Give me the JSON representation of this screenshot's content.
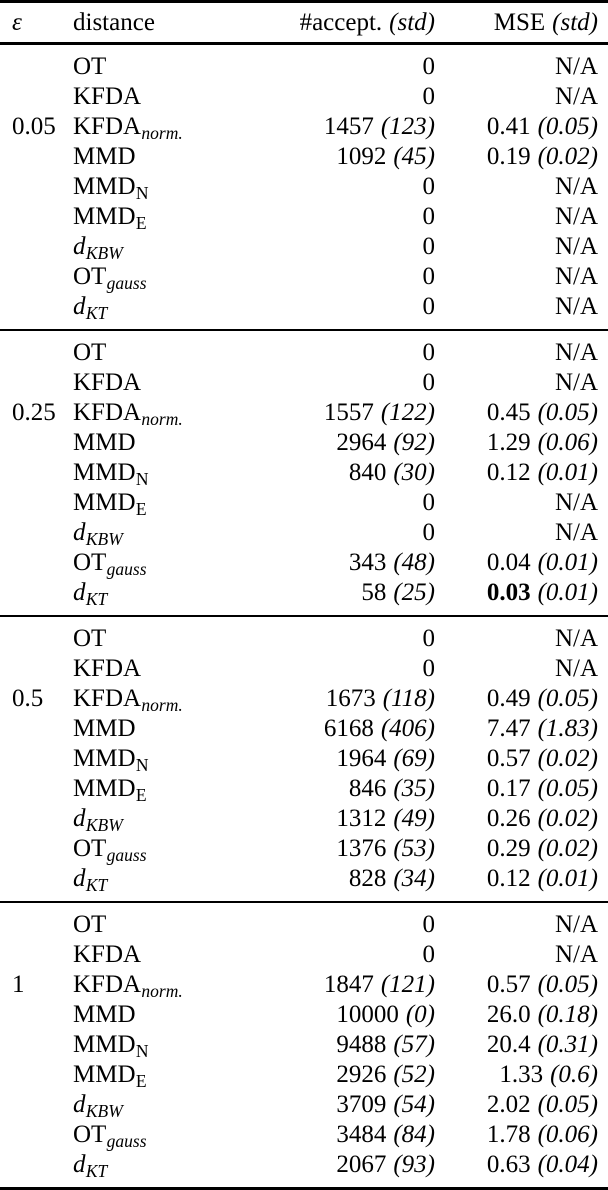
{
  "header": {
    "epsilon": "ε",
    "distance": "distance",
    "accept_main": "#accept.",
    "accept_std": "(std)",
    "mse_main": "MSE",
    "mse_std": "(std)"
  },
  "colors": {
    "text": "#000000",
    "background": "#ffffff",
    "rule": "#000000"
  },
  "groups": [
    {
      "eps": "0.05",
      "rows": [
        {
          "dist": {
            "main": "OT"
          },
          "accept": "0",
          "mse": "N/A"
        },
        {
          "dist": {
            "main": "KFDA"
          },
          "accept": "0",
          "mse": "N/A"
        },
        {
          "dist": {
            "main": "KFDA",
            "sub": "norm.",
            "sub_italic": true
          },
          "accept": "1457",
          "accept_std": "(123)",
          "mse": "0.41",
          "mse_std": "(0.05)"
        },
        {
          "dist": {
            "main": "MMD"
          },
          "accept": "1092",
          "accept_std": "(45)",
          "mse": "0.19",
          "mse_std": "(0.02)"
        },
        {
          "dist": {
            "main": "MMD",
            "sub": "N"
          },
          "accept": "0",
          "mse": "N/A"
        },
        {
          "dist": {
            "main": "MMD",
            "sub": "E"
          },
          "accept": "0",
          "mse": "N/A"
        },
        {
          "dist": {
            "main": "d",
            "main_italic": true,
            "sub": "KBW",
            "sub_italic": true
          },
          "accept": "0",
          "mse": "N/A"
        },
        {
          "dist": {
            "main": "OT",
            "sub": "gauss",
            "sub_italic": true
          },
          "accept": "0",
          "mse": "N/A"
        },
        {
          "dist": {
            "main": "d",
            "main_italic": true,
            "sub": "KT",
            "sub_italic": true
          },
          "accept": "0",
          "mse": "N/A"
        }
      ]
    },
    {
      "eps": "0.25",
      "rows": [
        {
          "dist": {
            "main": "OT"
          },
          "accept": "0",
          "mse": "N/A"
        },
        {
          "dist": {
            "main": "KFDA"
          },
          "accept": "0",
          "mse": "N/A"
        },
        {
          "dist": {
            "main": "KFDA",
            "sub": "norm.",
            "sub_italic": true
          },
          "accept": "1557",
          "accept_std": "(122)",
          "mse": "0.45",
          "mse_std": "(0.05)"
        },
        {
          "dist": {
            "main": "MMD"
          },
          "accept": "2964",
          "accept_std": "(92)",
          "mse": "1.29",
          "mse_std": "(0.06)"
        },
        {
          "dist": {
            "main": "MMD",
            "sub": "N"
          },
          "accept": "840",
          "accept_std": "(30)",
          "mse": "0.12",
          "mse_std": "(0.01)"
        },
        {
          "dist": {
            "main": "MMD",
            "sub": "E"
          },
          "accept": "0",
          "mse": "N/A"
        },
        {
          "dist": {
            "main": "d",
            "main_italic": true,
            "sub": "KBW",
            "sub_italic": true
          },
          "accept": "0",
          "mse": "N/A"
        },
        {
          "dist": {
            "main": "OT",
            "sub": "gauss",
            "sub_italic": true
          },
          "accept": "343",
          "accept_std": "(48)",
          "mse": "0.04",
          "mse_std": "(0.01)"
        },
        {
          "dist": {
            "main": "d",
            "main_italic": true,
            "sub": "KT",
            "sub_italic": true
          },
          "accept": "58",
          "accept_std": "(25)",
          "mse": "0.03",
          "mse_std": "(0.01)",
          "mse_bold": true
        }
      ]
    },
    {
      "eps": "0.5",
      "rows": [
        {
          "dist": {
            "main": "OT"
          },
          "accept": "0",
          "mse": "N/A"
        },
        {
          "dist": {
            "main": "KFDA"
          },
          "accept": "0",
          "mse": "N/A"
        },
        {
          "dist": {
            "main": "KFDA",
            "sub": "norm.",
            "sub_italic": true
          },
          "accept": "1673",
          "accept_std": "(118)",
          "mse": "0.49",
          "mse_std": "(0.05)"
        },
        {
          "dist": {
            "main": "MMD"
          },
          "accept": "6168",
          "accept_std": "(406)",
          "mse": "7.47",
          "mse_std": "(1.83)"
        },
        {
          "dist": {
            "main": "MMD",
            "sub": "N"
          },
          "accept": "1964",
          "accept_std": "(69)",
          "mse": "0.57",
          "mse_std": "(0.02)"
        },
        {
          "dist": {
            "main": "MMD",
            "sub": "E"
          },
          "accept": "846",
          "accept_std": "(35)",
          "mse": "0.17",
          "mse_std": "(0.05)"
        },
        {
          "dist": {
            "main": "d",
            "main_italic": true,
            "sub": "KBW",
            "sub_italic": true
          },
          "accept": "1312",
          "accept_std": "(49)",
          "mse": "0.26",
          "mse_std": "(0.02)"
        },
        {
          "dist": {
            "main": "OT",
            "sub": "gauss",
            "sub_italic": true
          },
          "accept": "1376",
          "accept_std": "(53)",
          "mse": "0.29",
          "mse_std": "(0.02)"
        },
        {
          "dist": {
            "main": "d",
            "main_italic": true,
            "sub": "KT",
            "sub_italic": true
          },
          "accept": "828",
          "accept_std": "(34)",
          "mse": "0.12",
          "mse_std": "(0.01)"
        }
      ]
    },
    {
      "eps": "1",
      "rows": [
        {
          "dist": {
            "main": "OT"
          },
          "accept": "0",
          "mse": "N/A"
        },
        {
          "dist": {
            "main": "KFDA"
          },
          "accept": "0",
          "mse": "N/A"
        },
        {
          "dist": {
            "main": "KFDA",
            "sub": "norm.",
            "sub_italic": true
          },
          "accept": "1847",
          "accept_std": "(121)",
          "mse": "0.57",
          "mse_std": "(0.05)"
        },
        {
          "dist": {
            "main": "MMD"
          },
          "accept": "10000",
          "accept_std": "(0)",
          "mse": "26.0",
          "mse_std": "(0.18)"
        },
        {
          "dist": {
            "main": "MMD",
            "sub": "N"
          },
          "accept": "9488",
          "accept_std": "(57)",
          "mse": "20.4",
          "mse_std": "(0.31)"
        },
        {
          "dist": {
            "main": "MMD",
            "sub": "E"
          },
          "accept": "2926",
          "accept_std": "(52)",
          "mse": "1.33",
          "mse_std": "(0.6)"
        },
        {
          "dist": {
            "main": "d",
            "main_italic": true,
            "sub": "KBW",
            "sub_italic": true
          },
          "accept": "3709",
          "accept_std": "(54)",
          "mse": "2.02",
          "mse_std": "(0.05)"
        },
        {
          "dist": {
            "main": "OT",
            "sub": "gauss",
            "sub_italic": true
          },
          "accept": "3484",
          "accept_std": "(84)",
          "mse": "1.78",
          "mse_std": "(0.06)"
        },
        {
          "dist": {
            "main": "d",
            "main_italic": true,
            "sub": "KT",
            "sub_italic": true
          },
          "accept": "2067",
          "accept_std": "(93)",
          "mse": "0.63",
          "mse_std": "(0.04)"
        }
      ]
    }
  ]
}
